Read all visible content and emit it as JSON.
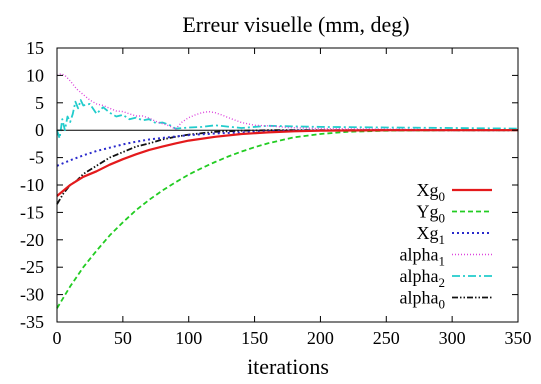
{
  "chart_data": {
    "type": "line",
    "title": "Erreur visuelle (mm, deg)",
    "xlabel": "iterations",
    "ylabel": "",
    "xlim": [
      0,
      350
    ],
    "ylim": [
      -35,
      15
    ],
    "xticks": [
      0,
      50,
      100,
      150,
      200,
      250,
      300,
      350
    ],
    "yticks": [
      15,
      10,
      5,
      0,
      -5,
      -10,
      -15,
      -20,
      -25,
      -30,
      -35
    ],
    "grid": false,
    "zero_line": true,
    "legend_position": "bottom-right",
    "series": [
      {
        "name": "Xg",
        "subscript": "0",
        "color": "#e41a1c",
        "style": "solid",
        "x": [
          0,
          10,
          20,
          30,
          40,
          50,
          60,
          70,
          80,
          90,
          100,
          120,
          140,
          160,
          180,
          200,
          250,
          300,
          350
        ],
        "y": [
          -12,
          -10,
          -8.5,
          -7.5,
          -6.3,
          -5.3,
          -4.4,
          -3.6,
          -3,
          -2.4,
          -1.9,
          -1.2,
          -0.7,
          -0.4,
          -0.2,
          -0.1,
          0,
          0,
          0
        ]
      },
      {
        "name": "Yg",
        "subscript": "0",
        "color": "#22cc22",
        "style": "dashed",
        "x": [
          0,
          10,
          20,
          30,
          40,
          50,
          60,
          70,
          80,
          90,
          100,
          110,
          120,
          130,
          140,
          150,
          160,
          180,
          200,
          220,
          250,
          300,
          350
        ],
        "y": [
          -32.5,
          -28.5,
          -25,
          -22,
          -19.2,
          -16.8,
          -14.6,
          -12.7,
          -11,
          -9.5,
          -8.1,
          -6.9,
          -5.8,
          -4.8,
          -3.9,
          -3.1,
          -2.4,
          -1.3,
          -0.7,
          -0.3,
          -0.1,
          0,
          0
        ]
      },
      {
        "name": "Xg",
        "subscript": "1",
        "color": "#2a2acc",
        "style": "dotted",
        "x": [
          0,
          10,
          20,
          30,
          40,
          50,
          60,
          70,
          80,
          100,
          120,
          140,
          160,
          180,
          200,
          250,
          300,
          350
        ],
        "y": [
          -6.5,
          -5.5,
          -4.6,
          -3.8,
          -3.2,
          -2.6,
          -2.1,
          -1.7,
          -1.4,
          -0.9,
          -0.6,
          -0.4,
          -0.2,
          -0.1,
          -0.05,
          0,
          0,
          0
        ]
      },
      {
        "name": "alpha",
        "subscript": "1",
        "color": "#dd44dd",
        "style": "dotted-fine",
        "x": [
          0,
          3,
          6,
          10,
          15,
          20,
          25,
          30,
          35,
          40,
          45,
          50,
          55,
          60,
          65,
          70,
          75,
          80,
          85,
          90,
          95,
          100,
          105,
          110,
          115,
          120,
          125,
          130,
          140,
          150,
          160,
          175,
          200,
          250,
          300,
          350
        ],
        "y": [
          10,
          10.3,
          10,
          9,
          7.5,
          6.5,
          5.5,
          4.8,
          4.5,
          4,
          3.5,
          3.4,
          3,
          2.6,
          2.6,
          2.2,
          1.6,
          1.2,
          0.8,
          0.2,
          1.5,
          2.3,
          2.8,
          3.2,
          3.4,
          3.2,
          2.8,
          2.3,
          1.4,
          0.9,
          0.8,
          0.5,
          0.3,
          0.2,
          0.1,
          0.1
        ]
      },
      {
        "name": "alpha",
        "subscript": "2",
        "color": "#22cccc",
        "style": "dashdot",
        "x": [
          0,
          2,
          4,
          6,
          8,
          10,
          12,
          14,
          16,
          18,
          20,
          25,
          30,
          35,
          40,
          45,
          50,
          55,
          60,
          65,
          70,
          75,
          80,
          85,
          90,
          100,
          110,
          120,
          140,
          160,
          180,
          200,
          250,
          300,
          350
        ],
        "y": [
          0,
          -1.5,
          2,
          0,
          2.5,
          1.5,
          3,
          5.2,
          4,
          5.5,
          4.5,
          4.8,
          3,
          4.2,
          3.2,
          2.5,
          2.8,
          2,
          2.3,
          1.8,
          2,
          1.3,
          1.4,
          1,
          0.3,
          0.5,
          0.6,
          0.9,
          0.4,
          0.8,
          0.7,
          0.6,
          0.5,
          0.4,
          0.3
        ]
      },
      {
        "name": "alpha",
        "subscript": "0",
        "color": "#111111",
        "style": "dashdotdot",
        "x": [
          0,
          5,
          10,
          15,
          20,
          30,
          40,
          50,
          60,
          70,
          80,
          90,
          100,
          120,
          140,
          160,
          180,
          200,
          250,
          300,
          350
        ],
        "y": [
          -13.5,
          -11.5,
          -10,
          -9.2,
          -8,
          -6.5,
          -5,
          -4,
          -3,
          -2.4,
          -1.7,
          -1.2,
          -0.8,
          -0.3,
          -0.1,
          0,
          0,
          0,
          0,
          0,
          0
        ]
      }
    ]
  }
}
